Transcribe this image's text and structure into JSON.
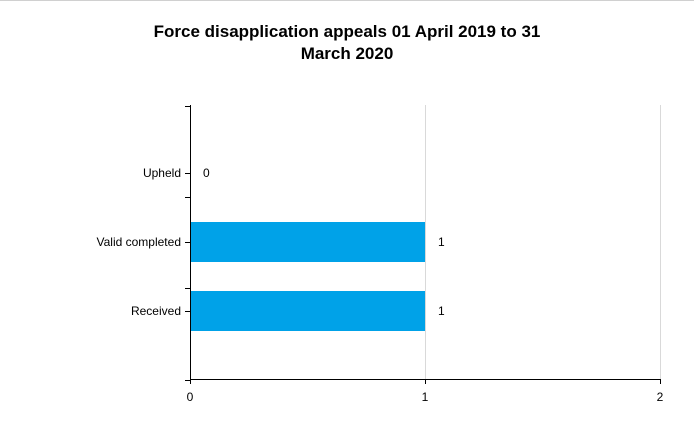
{
  "chart_data": {
    "type": "bar",
    "orientation": "horizontal",
    "title_lines": [
      "Force disapplication appeals 01 April 2019 to 31",
      "March 2020"
    ],
    "xlabel": "",
    "ylabel": "",
    "categories": [
      "Upheld",
      "Valid completed",
      "Received"
    ],
    "values": [
      0,
      1,
      1
    ],
    "data_labels": [
      "0",
      "1",
      "1"
    ],
    "xlim": [
      0,
      2
    ],
    "x_ticks": [
      0,
      1,
      2
    ],
    "x_tick_labels": [
      "0",
      "1",
      "2"
    ],
    "grid": "vertical",
    "legend": "none",
    "colors": {
      "bar": "#00a2e8",
      "grid": "#d9d9d9",
      "axis": "#000000"
    }
  }
}
